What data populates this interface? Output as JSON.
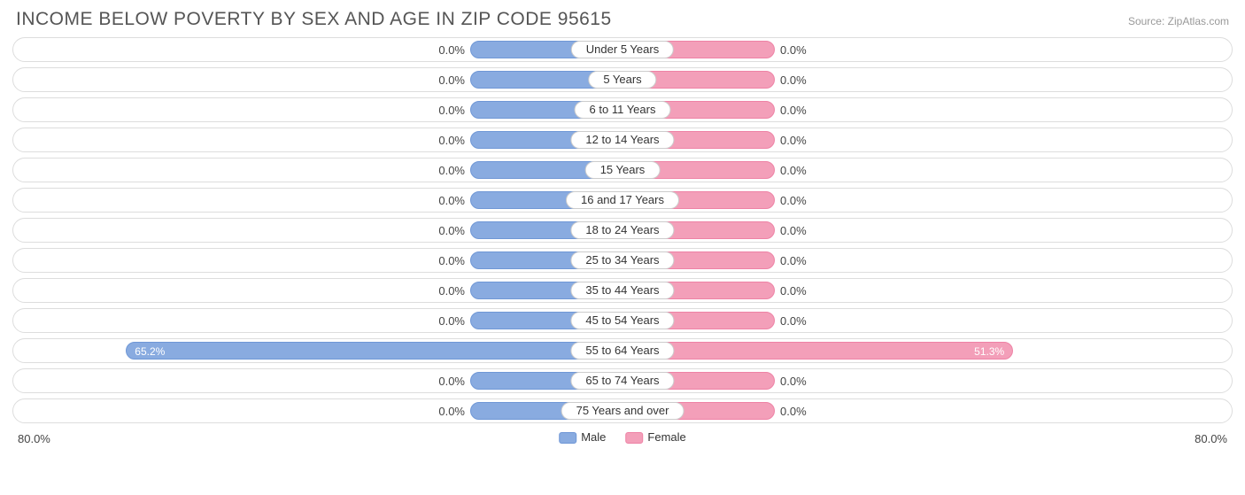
{
  "title": "INCOME BELOW POVERTY BY SEX AND AGE IN ZIP CODE 95615",
  "source": "Source: ZipAtlas.com",
  "chart": {
    "type": "diverging-bar",
    "axis_max_pct": 80.0,
    "axis_max_label": "80.0%",
    "min_bar_pct": 20.0,
    "colors": {
      "male_fill": "#89abe0",
      "male_border": "#6f97d6",
      "female_fill": "#f39fb9",
      "female_border": "#ee82a5",
      "row_border": "#dddddd",
      "text": "#444444",
      "label_border": "#cccccc",
      "background": "#ffffff"
    },
    "legend": {
      "male": "Male",
      "female": "Female"
    },
    "rows": [
      {
        "label": "Under 5 Years",
        "male": 0.0,
        "female": 0.0,
        "male_txt": "0.0%",
        "female_txt": "0.0%"
      },
      {
        "label": "5 Years",
        "male": 0.0,
        "female": 0.0,
        "male_txt": "0.0%",
        "female_txt": "0.0%"
      },
      {
        "label": "6 to 11 Years",
        "male": 0.0,
        "female": 0.0,
        "male_txt": "0.0%",
        "female_txt": "0.0%"
      },
      {
        "label": "12 to 14 Years",
        "male": 0.0,
        "female": 0.0,
        "male_txt": "0.0%",
        "female_txt": "0.0%"
      },
      {
        "label": "15 Years",
        "male": 0.0,
        "female": 0.0,
        "male_txt": "0.0%",
        "female_txt": "0.0%"
      },
      {
        "label": "16 and 17 Years",
        "male": 0.0,
        "female": 0.0,
        "male_txt": "0.0%",
        "female_txt": "0.0%"
      },
      {
        "label": "18 to 24 Years",
        "male": 0.0,
        "female": 0.0,
        "male_txt": "0.0%",
        "female_txt": "0.0%"
      },
      {
        "label": "25 to 34 Years",
        "male": 0.0,
        "female": 0.0,
        "male_txt": "0.0%",
        "female_txt": "0.0%"
      },
      {
        "label": "35 to 44 Years",
        "male": 0.0,
        "female": 0.0,
        "male_txt": "0.0%",
        "female_txt": "0.0%"
      },
      {
        "label": "45 to 54 Years",
        "male": 0.0,
        "female": 0.0,
        "male_txt": "0.0%",
        "female_txt": "0.0%"
      },
      {
        "label": "55 to 64 Years",
        "male": 65.2,
        "female": 51.3,
        "male_txt": "65.2%",
        "female_txt": "51.3%"
      },
      {
        "label": "65 to 74 Years",
        "male": 0.0,
        "female": 0.0,
        "male_txt": "0.0%",
        "female_txt": "0.0%"
      },
      {
        "label": "75 Years and over",
        "male": 0.0,
        "female": 0.0,
        "male_txt": "0.0%",
        "female_txt": "0.0%"
      }
    ]
  }
}
